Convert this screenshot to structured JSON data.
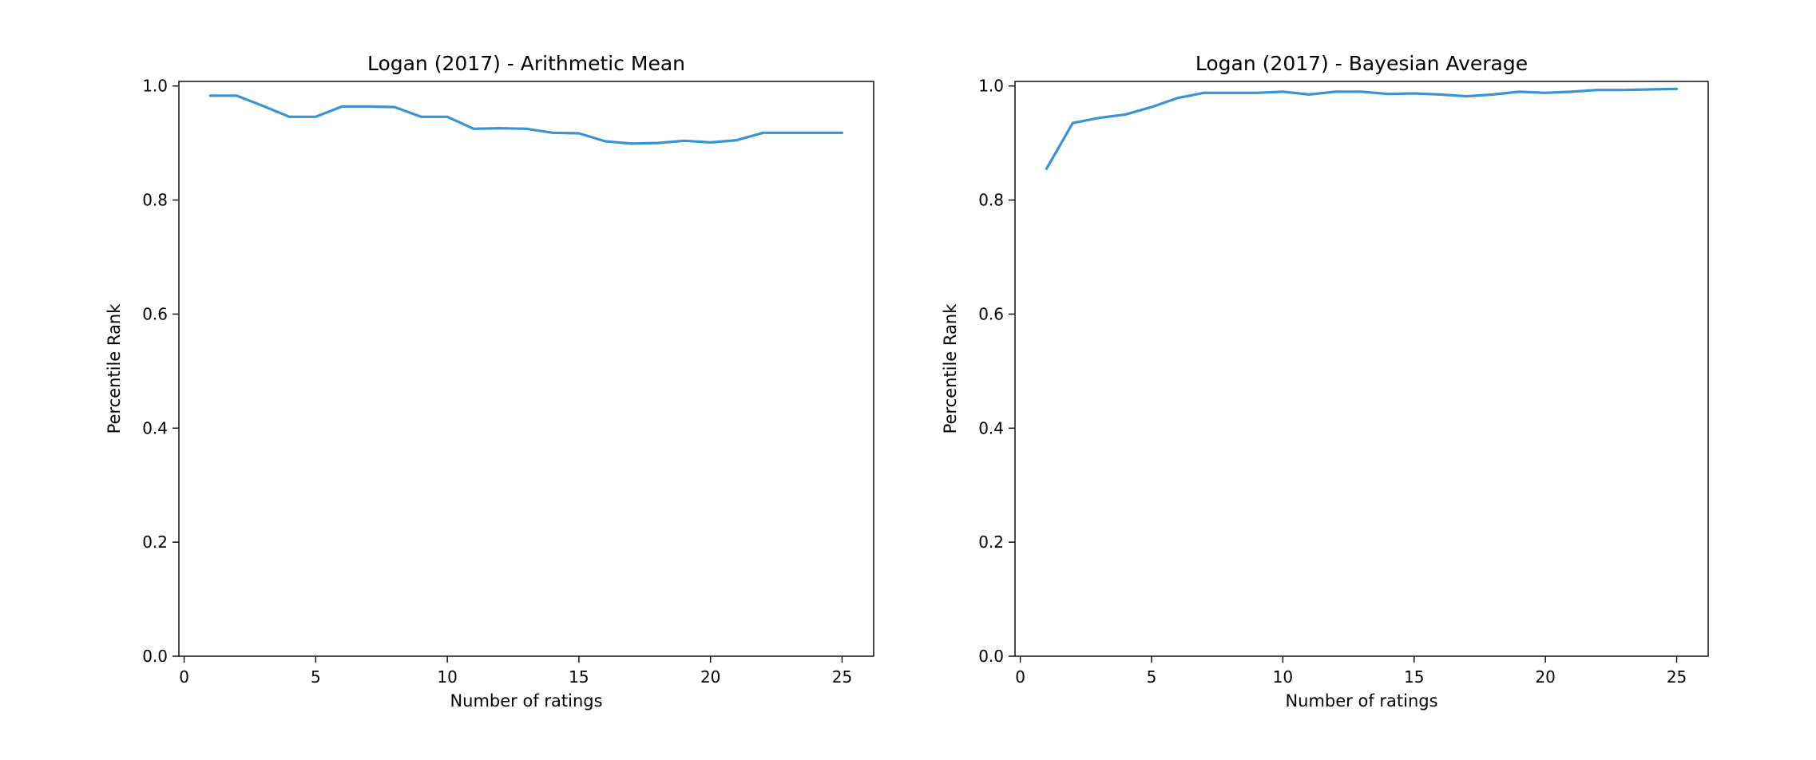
{
  "chart_data": [
    {
      "type": "line",
      "title": "Logan (2017) - Arithmetic Mean",
      "xlabel": "Number of ratings",
      "ylabel": "Percentile Rank",
      "xlim": [
        -0.2,
        26.2
      ],
      "ylim": [
        0.0,
        1.008
      ],
      "xticks": [
        0,
        5,
        10,
        15,
        20,
        25
      ],
      "xtick_labels": [
        "0",
        "5",
        "10",
        "15",
        "20",
        "25"
      ],
      "yticks": [
        0.0,
        0.2,
        0.4,
        0.6,
        0.8,
        1.0
      ],
      "ytick_labels": [
        "0.0",
        "0.2",
        "0.4",
        "0.6",
        "0.8",
        "1.0"
      ],
      "grid": false,
      "color": "#3a94d0",
      "series": [
        {
          "x": [
            1,
            2,
            3,
            4,
            5,
            6,
            7,
            8,
            9,
            10,
            11,
            12,
            13,
            14,
            15,
            16,
            17,
            18,
            19,
            20,
            21,
            22,
            23,
            24,
            25
          ],
          "values": [
            0.983,
            0.983,
            0.965,
            0.946,
            0.946,
            0.964,
            0.964,
            0.963,
            0.946,
            0.946,
            0.925,
            0.926,
            0.925,
            0.918,
            0.917,
            0.903,
            0.899,
            0.9,
            0.904,
            0.901,
            0.905,
            0.918,
            0.918,
            0.918,
            0.918
          ]
        }
      ]
    },
    {
      "type": "line",
      "title": "Logan (2017) - Bayesian Average",
      "xlabel": "Number of ratings",
      "ylabel": "Percentile Rank",
      "xlim": [
        -0.2,
        26.2
      ],
      "ylim": [
        0.0,
        1.008
      ],
      "xticks": [
        0,
        5,
        10,
        15,
        20,
        25
      ],
      "xtick_labels": [
        "0",
        "5",
        "10",
        "15",
        "20",
        "25"
      ],
      "yticks": [
        0.0,
        0.2,
        0.4,
        0.6,
        0.8,
        1.0
      ],
      "ytick_labels": [
        "0.0",
        "0.2",
        "0.4",
        "0.6",
        "0.8",
        "1.0"
      ],
      "grid": false,
      "color": "#3a94d0",
      "series": [
        {
          "x": [
            1,
            2,
            3,
            4,
            5,
            6,
            7,
            8,
            9,
            10,
            11,
            12,
            13,
            14,
            15,
            16,
            17,
            18,
            19,
            20,
            21,
            22,
            23,
            24,
            25
          ],
          "values": [
            0.855,
            0.935,
            0.944,
            0.95,
            0.963,
            0.979,
            0.988,
            0.988,
            0.988,
            0.99,
            0.985,
            0.99,
            0.99,
            0.986,
            0.987,
            0.985,
            0.982,
            0.985,
            0.99,
            0.988,
            0.99,
            0.993,
            0.993,
            0.994,
            0.995
          ]
        }
      ]
    }
  ]
}
